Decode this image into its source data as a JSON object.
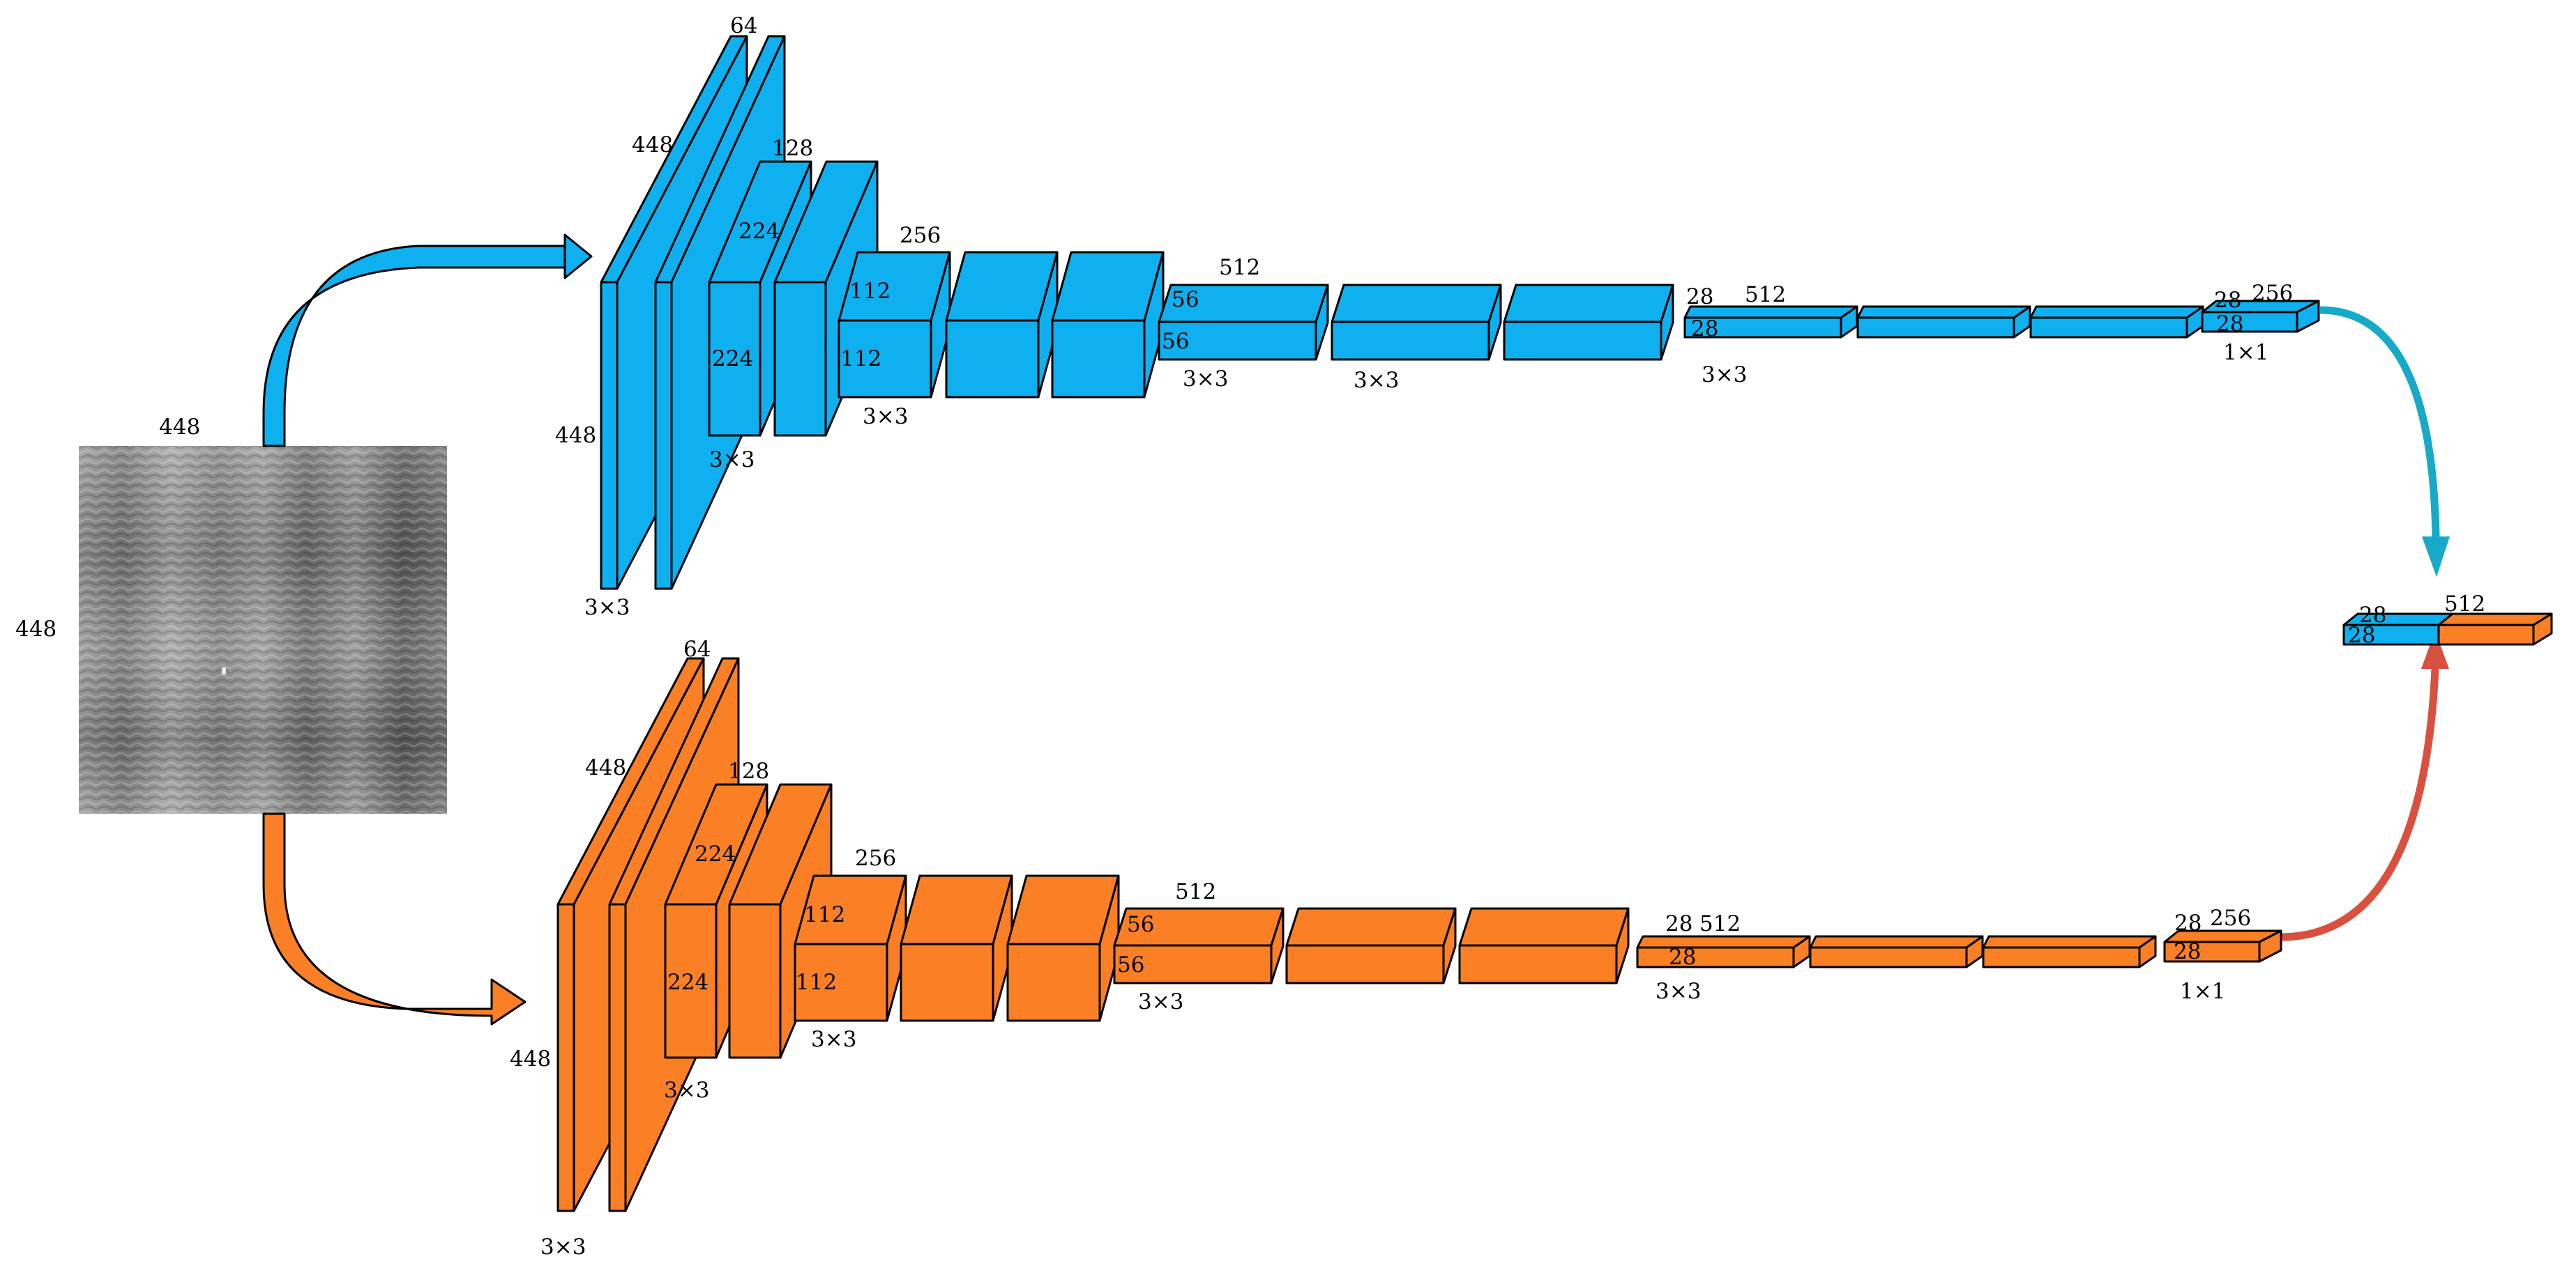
{
  "colors": {
    "branch_top": "#0eb0ef",
    "branch_bottom": "#fb7f24",
    "arrow_top_out": "#16a9c8",
    "arrow_bottom_out": "#d9503f",
    "outline": "#000000"
  },
  "input": {
    "width_label": "448",
    "height_label": "448"
  },
  "top_branch": {
    "labels": {
      "c64": "64",
      "s448_a": "448",
      "s448_b": "448",
      "k1": "3×3",
      "c128": "128",
      "s224_a": "224",
      "s224_b": "224",
      "k2": "3×3",
      "c256": "256",
      "s112_a": "112",
      "s112_b": "112",
      "k3": "3×3",
      "c512": "512",
      "s56_a": "56",
      "s56_b": "56",
      "k4": "3×3",
      "k5": "3×3",
      "s28_a": "28",
      "c512_b": "512",
      "s28_b": "28",
      "k6": "3×3",
      "s28_c": "28",
      "c256_b": "256",
      "s28_d": "28",
      "k7": "1×1"
    }
  },
  "bottom_branch": {
    "labels": {
      "c64": "64",
      "s448_a": "448",
      "s448_b": "448",
      "k1": "3×3",
      "c128": "128",
      "s224_a": "224",
      "s224_b": "224",
      "k2": "3×3",
      "c256": "256",
      "s112_a": "112",
      "s112_b": "112",
      "k3": "3×3",
      "c512": "512",
      "s56_a": "56",
      "s56_b": "56",
      "k4": "3×3",
      "s28_a": "28",
      "c512_b": "512",
      "s28_b": "28",
      "k6": "3×3",
      "s28_c": "28",
      "c256_b": "256",
      "s28_d": "28",
      "k7": "1×1"
    }
  },
  "output": {
    "s28_a": "28",
    "s28_b": "28",
    "c512": "512"
  }
}
